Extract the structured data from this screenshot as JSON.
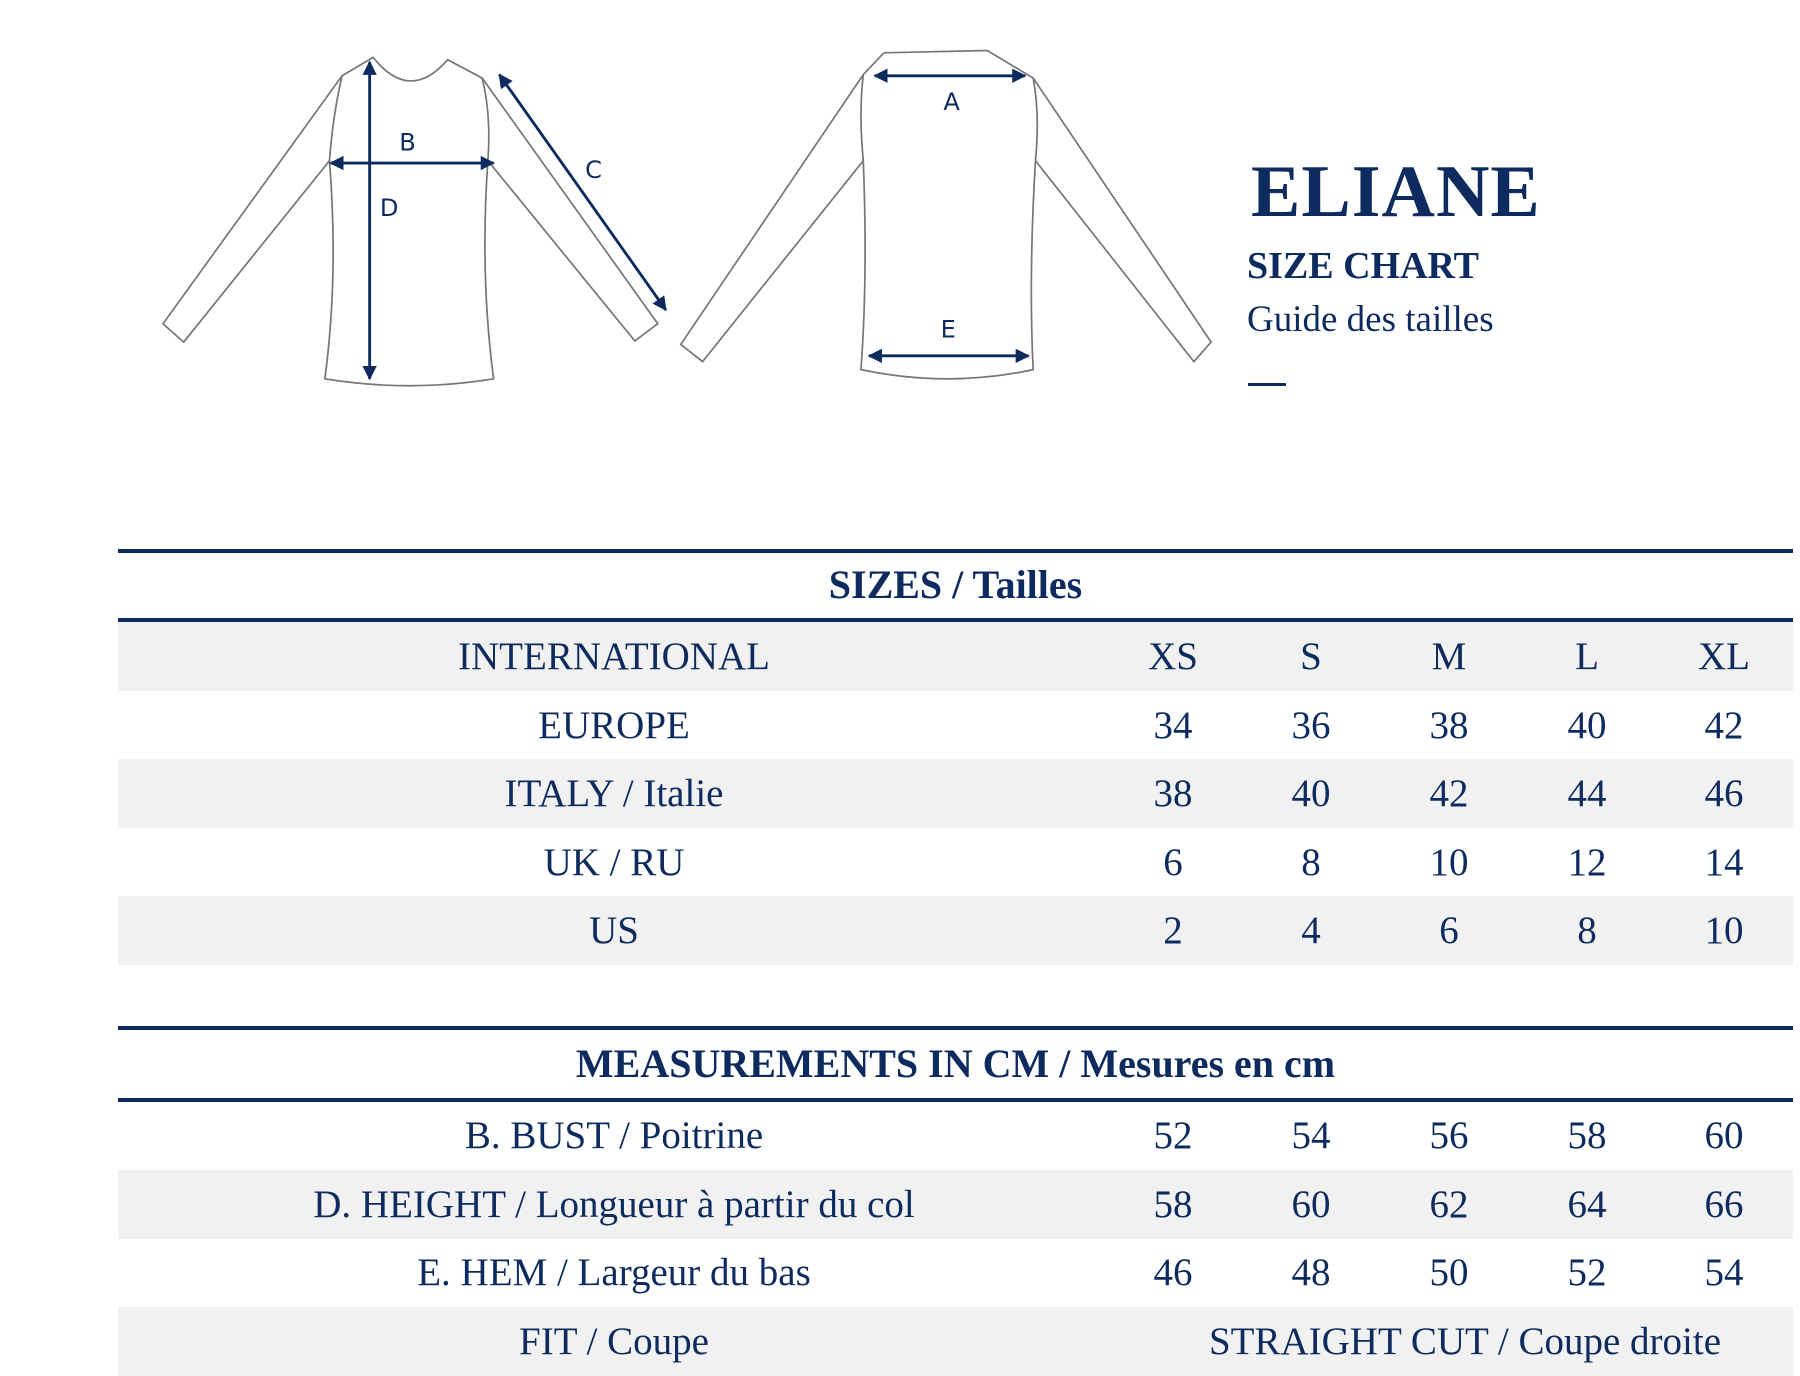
{
  "header": {
    "title": "ELIANE",
    "subtitle": "SIZE CHART",
    "subtitle_fr": "Guide des tailles"
  },
  "diagram": {
    "labels": [
      "A",
      "B",
      "C",
      "D",
      "E"
    ]
  },
  "colors": {
    "accent": "#0d2b5e",
    "row_shade": "#f1f1f1"
  },
  "sizes": {
    "heading": "SIZES / Tailles",
    "rows": [
      {
        "label": "INTERNATIONAL",
        "values": [
          "XS",
          "S",
          "M",
          "L",
          "XL"
        ]
      },
      {
        "label": "EUROPE",
        "values": [
          "34",
          "36",
          "38",
          "40",
          "42"
        ]
      },
      {
        "label": "ITALY / Italie",
        "values": [
          "38",
          "40",
          "42",
          "44",
          "46"
        ]
      },
      {
        "label": "UK / RU",
        "values": [
          "6",
          "8",
          "10",
          "12",
          "14"
        ]
      },
      {
        "label": "US",
        "values": [
          "2",
          "4",
          "6",
          "8",
          "10"
        ]
      }
    ]
  },
  "measurements": {
    "heading": "MEASUREMENTS IN CM / Mesures en cm",
    "rows": [
      {
        "label": "B. BUST / Poitrine",
        "values": [
          "52",
          "54",
          "56",
          "58",
          "60"
        ]
      },
      {
        "label": "D. HEIGHT / Longueur à partir du col",
        "values": [
          "58",
          "60",
          "62",
          "64",
          "66"
        ]
      },
      {
        "label": "E. HEM / Largeur du bas",
        "values": [
          "46",
          "48",
          "50",
          "52",
          "54"
        ]
      }
    ],
    "fit": {
      "label": "FIT / Coupe",
      "value": "STRAIGHT CUT / Coupe droite"
    }
  }
}
